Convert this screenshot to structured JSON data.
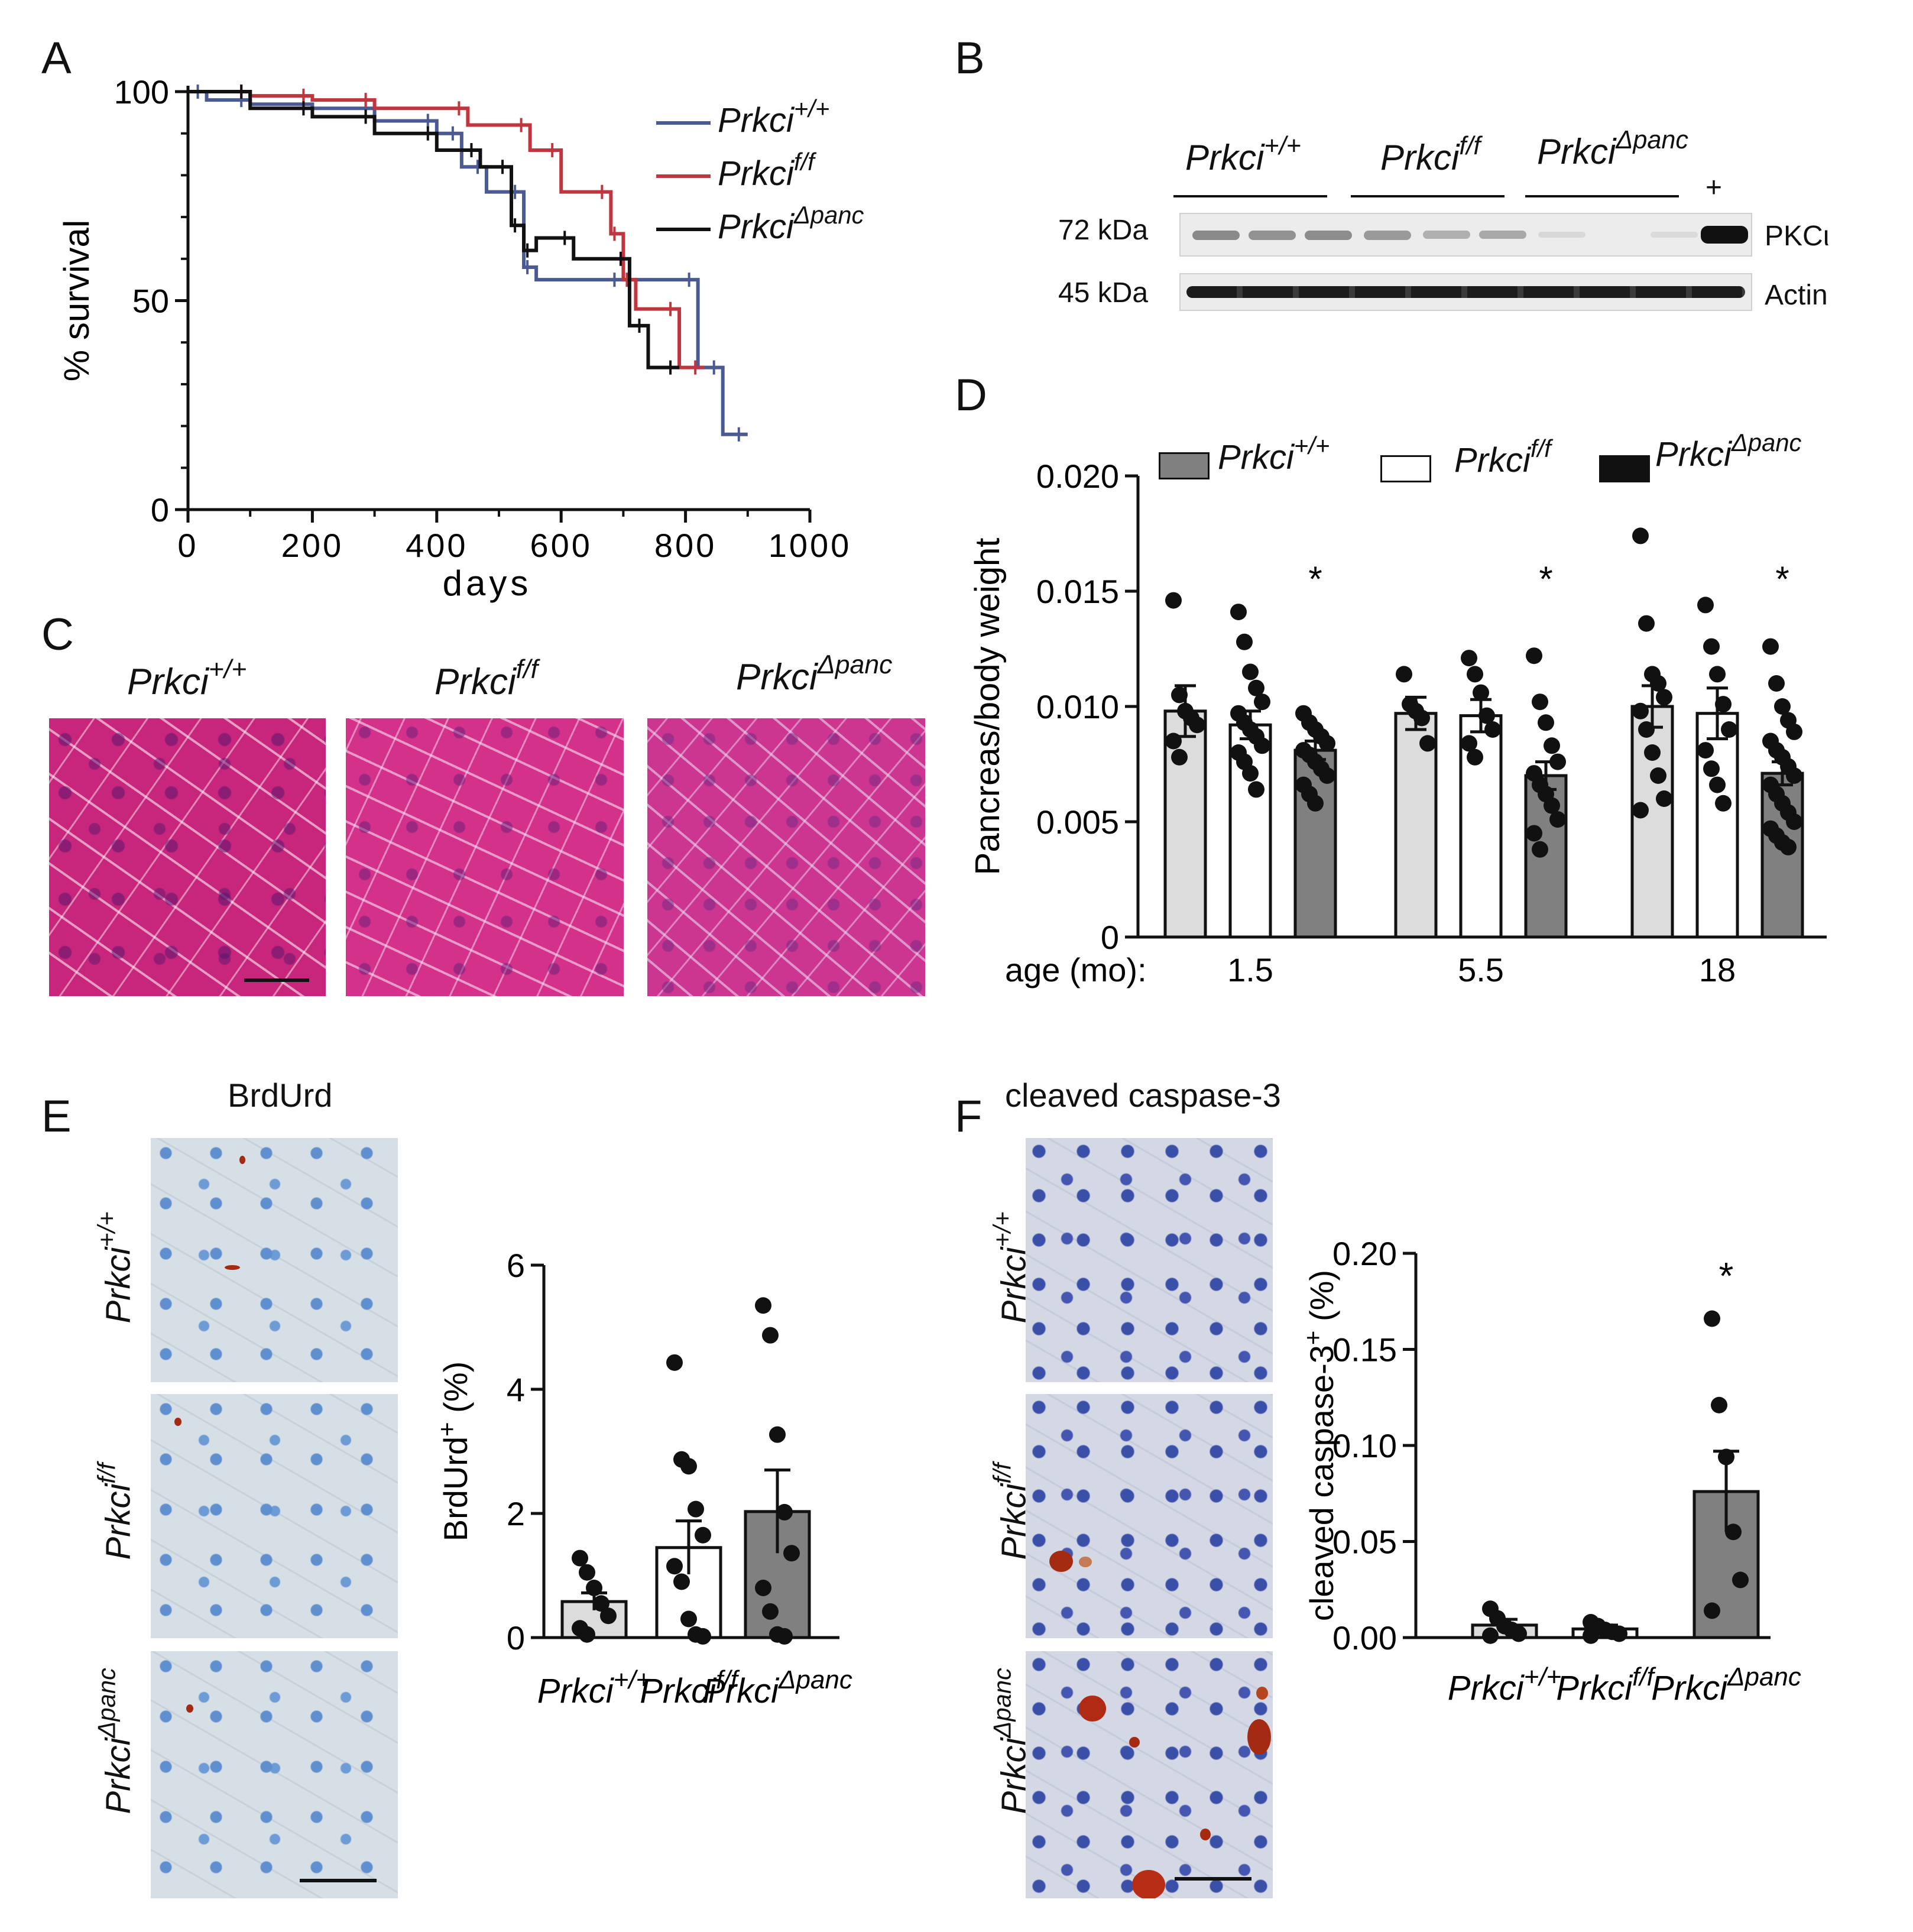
{
  "panels": {
    "A": {
      "letter": "A"
    },
    "B": {
      "letter": "B"
    },
    "C": {
      "letter": "C"
    },
    "D": {
      "letter": "D"
    },
    "E": {
      "letter": "E"
    },
    "F": {
      "letter": "F"
    }
  },
  "genotypes": {
    "prefix": "Prkci",
    "wt_sup": "+/+",
    "ff_sup": "f/f",
    "panc_sup": "Δpanc"
  },
  "colors": {
    "wt": "#4b5a93",
    "ff": "#c0363f",
    "panc": "#111111",
    "bar_wt": "#dcdcdc",
    "bar_ff": "#ffffff",
    "bar_panc": "#808080"
  },
  "panel_b": {
    "markers": [
      "72 kDa",
      "45 kDa"
    ],
    "proteins": [
      "PKCι",
      "Actin"
    ],
    "positive_label": "+"
  },
  "panel_e": {
    "stain_title": "BrdUrd"
  },
  "panel_f": {
    "stain_title": "cleaved caspase-3"
  },
  "chart_data": [
    {
      "id": "A",
      "type": "line",
      "subtype": "kaplan-meier",
      "xlabel": "days",
      "ylabel": "% survival",
      "xlim": [
        0,
        1000
      ],
      "ylim": [
        0,
        100
      ],
      "xticks": [
        0,
        200,
        400,
        600,
        800,
        1000
      ],
      "yticks": [
        0,
        50,
        100
      ],
      "series": [
        {
          "name": "Prkci+/+",
          "color": "#4b5a93",
          "x": [
            0,
            30,
            100,
            200,
            300,
            400,
            440,
            480,
            540,
            560,
            700,
            820,
            860,
            900
          ],
          "y": [
            100,
            98,
            97,
            96,
            93,
            90,
            82,
            76,
            58,
            55,
            55,
            34,
            18,
            18
          ]
        },
        {
          "name": "Prkcif/f",
          "color": "#c0363f",
          "x": [
            0,
            100,
            200,
            300,
            450,
            550,
            600,
            680,
            700,
            720,
            790,
            830
          ],
          "y": [
            100,
            99,
            98,
            96,
            92,
            86,
            76,
            66,
            55,
            48,
            34,
            34
          ]
        },
        {
          "name": "PrkciΔpanc",
          "color": "#111111",
          "x": [
            0,
            100,
            200,
            300,
            400,
            470,
            520,
            540,
            560,
            620,
            710,
            740,
            790
          ],
          "y": [
            100,
            96,
            94,
            90,
            86,
            82,
            68,
            62,
            65,
            60,
            44,
            34,
            34
          ]
        }
      ]
    },
    {
      "id": "D",
      "type": "bar",
      "ylabel": "Pancreas/body weight",
      "xlabel": "age (mo):",
      "categories": [
        "1.5",
        "5.5",
        "18"
      ],
      "ylim": [
        0,
        0.02
      ],
      "yticks": [
        "0",
        "0.005",
        "0.010",
        "0.015",
        "0.020"
      ],
      "significance": [
        "*",
        "*",
        "*"
      ],
      "series": [
        {
          "name": "Prkci+/+",
          "values": [
            0.0098,
            0.0097,
            0.01
          ],
          "errors": [
            0.0011,
            0.0007,
            0.0009
          ],
          "points": [
            [
              0.0146,
              0.0105,
              0.0098,
              0.0095,
              0.0092,
              0.0085,
              0.0078
            ],
            [
              0.0114,
              0.0101,
              0.0098,
              0.0095,
              0.0084
            ],
            [
              0.0174,
              0.0136,
              0.0114,
              0.011,
              0.0104,
              0.0098,
              0.009,
              0.008,
              0.007,
              0.006,
              0.0055
            ]
          ]
        },
        {
          "name": "Prkcif/f",
          "values": [
            0.0092,
            0.0096,
            0.0097
          ],
          "errors": [
            0.0006,
            0.0007,
            0.0011
          ],
          "points": [
            [
              0.0141,
              0.0128,
              0.0115,
              0.0108,
              0.0102,
              0.0097,
              0.0093,
              0.009,
              0.0087,
              0.0083,
              0.008,
              0.0076,
              0.0071,
              0.0064
            ],
            [
              0.0121,
              0.0114,
              0.0106,
              0.0096,
              0.009,
              0.0084,
              0.0078
            ],
            [
              0.0144,
              0.0126,
              0.0114,
              0.0101,
              0.009,
              0.0081,
              0.0073,
              0.0066,
              0.0058
            ]
          ]
        },
        {
          "name": "PrkciΔpanc",
          "values": [
            0.0081,
            0.007,
            0.0071
          ],
          "errors": [
            0.0004,
            0.0006,
            0.0005
          ],
          "points": [
            [
              0.0097,
              0.0093,
              0.009,
              0.0087,
              0.0084,
              0.0081,
              0.0079,
              0.0076,
              0.0073,
              0.007,
              0.0066,
              0.0062,
              0.0058
            ],
            [
              0.0122,
              0.0102,
              0.0093,
              0.0083,
              0.0076,
              0.0071,
              0.0066,
              0.0062,
              0.0057,
              0.0051,
              0.0045,
              0.0038
            ],
            [
              0.0126,
              0.011,
              0.01,
              0.0094,
              0.0089,
              0.0085,
              0.0081,
              0.0078,
              0.0074,
              0.007,
              0.0066,
              0.0062,
              0.0058,
              0.0054,
              0.005,
              0.0047,
              0.0044,
              0.0041,
              0.0039
            ]
          ]
        }
      ]
    },
    {
      "id": "E",
      "type": "bar",
      "ylabel": "BrdUrd+ (%)",
      "categories": [
        "Prkci+/+",
        "Prkcif/f",
        "PrkciΔpanc"
      ],
      "ylim": [
        0,
        6
      ],
      "yticks": [
        "0",
        "2",
        "4",
        "6"
      ],
      "values": [
        0.58,
        1.45,
        2.03
      ],
      "errors": [
        0.14,
        0.43,
        0.67
      ],
      "points": [
        [
          1.28,
          1.05,
          0.8,
          0.55,
          0.35,
          0.15,
          0.05
        ],
        [
          4.43,
          2.87,
          2.76,
          2.07,
          1.65,
          1.15,
          0.9,
          0.3,
          0.05,
          0.02
        ],
        [
          5.35,
          4.87,
          3.27,
          2.02,
          1.36,
          0.8,
          0.42,
          0.05,
          0.02
        ]
      ]
    },
    {
      "id": "F",
      "type": "bar",
      "ylabel": "cleaved caspase-3+ (%)",
      "categories": [
        "Prkci+/+",
        "Prkcif/f",
        "PrkciΔpanc"
      ],
      "ylim": [
        0,
        0.2
      ],
      "yticks": [
        "0.00",
        "0.05",
        "0.10",
        "0.15",
        "0.20"
      ],
      "values": [
        0.0065,
        0.0045,
        0.076
      ],
      "errors": [
        0.003,
        0.002,
        0.021
      ],
      "significance": [
        "",
        "",
        "*"
      ],
      "points": [
        [
          0.015,
          0.01,
          0.006,
          0.004,
          0.002,
          0.001
        ],
        [
          0.008,
          0.006,
          0.004,
          0.003,
          0.002,
          0.001
        ],
        [
          0.166,
          0.121,
          0.094,
          0.055,
          0.03,
          0.014
        ]
      ]
    }
  ]
}
